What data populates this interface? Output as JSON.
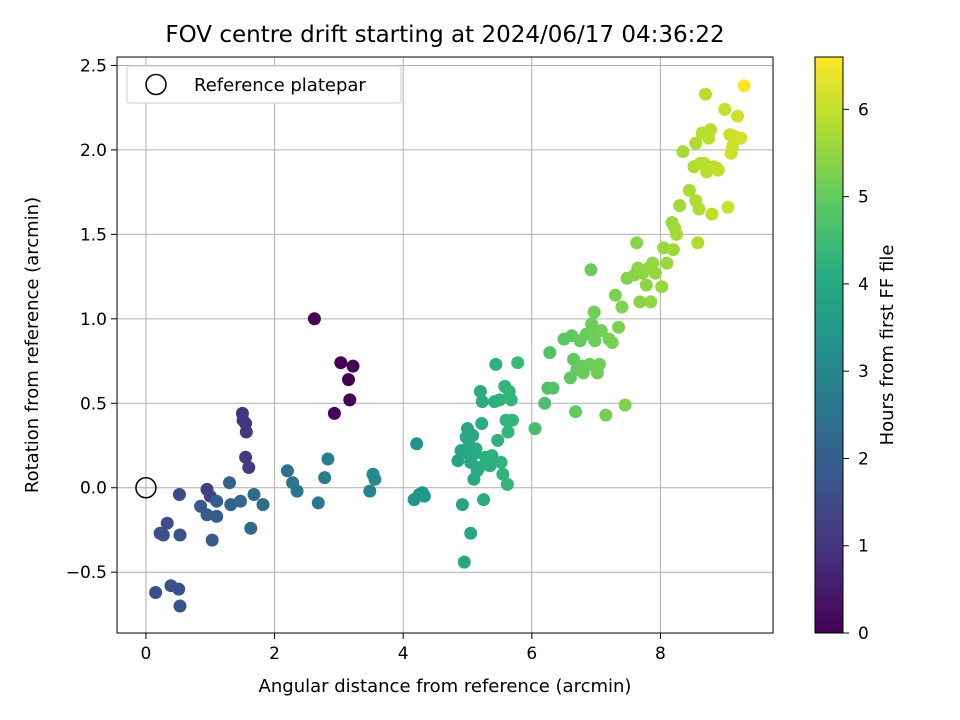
{
  "chart_data": {
    "type": "scatter",
    "title": "FOV centre drift starting at 2024/06/17 04:36:22",
    "xlabel": "Angular distance from reference (arcmin)",
    "ylabel": "Rotation from reference (arcmin)",
    "xlim": [
      -0.45,
      9.75
    ],
    "ylim": [
      -0.86,
      2.55
    ],
    "x_ticks": [
      0,
      2,
      4,
      6,
      8
    ],
    "y_ticks": [
      -0.5,
      0.0,
      0.5,
      1.0,
      1.5,
      2.0,
      2.5
    ],
    "grid": true,
    "legend": {
      "position": "top-left",
      "entries": [
        "Reference platepar"
      ]
    },
    "reference_point": {
      "x": 0,
      "y": 0
    },
    "colorbar": {
      "label": "Hours from first FF file",
      "colormap": "viridis",
      "range": [
        0,
        6.6
      ],
      "ticks": [
        0,
        1,
        2,
        3,
        4,
        5,
        6
      ]
    },
    "points": [
      [
        2.62,
        1.0,
        0.0
      ],
      [
        3.03,
        0.74,
        0.0
      ],
      [
        3.15,
        0.64,
        0.02
      ],
      [
        3.22,
        0.72,
        0.05
      ],
      [
        3.17,
        0.52,
        0.08
      ],
      [
        2.93,
        0.44,
        0.1
      ],
      [
        1.5,
        0.44,
        1.0
      ],
      [
        1.55,
        0.38,
        0.98
      ],
      [
        1.51,
        0.4,
        1.02
      ],
      [
        1.56,
        0.33,
        1.05
      ],
      [
        1.55,
        0.18,
        1.1
      ],
      [
        1.6,
        0.12,
        1.12
      ],
      [
        0.95,
        -0.01,
        1.25
      ],
      [
        1.0,
        -0.05,
        1.3
      ],
      [
        0.52,
        -0.04,
        1.45
      ],
      [
        0.33,
        -0.21,
        1.55
      ],
      [
        0.22,
        -0.27,
        1.6
      ],
      [
        0.27,
        -0.28,
        1.62
      ],
      [
        0.53,
        -0.28,
        1.65
      ],
      [
        0.15,
        -0.62,
        1.6
      ],
      [
        0.39,
        -0.58,
        1.65
      ],
      [
        0.51,
        -0.6,
        1.7
      ],
      [
        0.53,
        -0.7,
        1.72
      ],
      [
        0.85,
        -0.11,
        1.85
      ],
      [
        0.95,
        -0.16,
        1.9
      ],
      [
        1.03,
        -0.31,
        1.9
      ],
      [
        1.1,
        -0.08,
        1.95
      ],
      [
        1.1,
        -0.17,
        1.95
      ],
      [
        1.3,
        0.03,
        2.05
      ],
      [
        1.32,
        -0.1,
        2.05
      ],
      [
        1.47,
        -0.08,
        2.15
      ],
      [
        1.63,
        -0.24,
        2.2
      ],
      [
        1.68,
        -0.04,
        2.25
      ],
      [
        1.82,
        -0.1,
        2.3
      ],
      [
        2.2,
        0.1,
        2.45
      ],
      [
        2.28,
        0.03,
        2.5
      ],
      [
        2.35,
        -0.02,
        2.55
      ],
      [
        2.68,
        -0.09,
        2.7
      ],
      [
        2.78,
        0.06,
        2.75
      ],
      [
        2.83,
        0.17,
        2.8
      ],
      [
        3.48,
        -0.02,
        3.05
      ],
      [
        3.53,
        0.08,
        3.1
      ],
      [
        3.56,
        0.05,
        3.12
      ],
      [
        4.17,
        -0.07,
        3.4
      ],
      [
        4.21,
        0.26,
        3.42
      ],
      [
        4.25,
        -0.04,
        3.45
      ],
      [
        4.3,
        -0.03,
        3.47
      ],
      [
        4.33,
        -0.05,
        3.48
      ],
      [
        4.85,
        0.16,
        3.85
      ],
      [
        4.9,
        0.22,
        3.88
      ],
      [
        4.92,
        -0.1,
        3.9
      ],
      [
        4.95,
        -0.44,
        3.92
      ],
      [
        4.98,
        0.3,
        3.9
      ],
      [
        5.0,
        0.35,
        3.92
      ],
      [
        5.02,
        0.2,
        3.95
      ],
      [
        5.03,
        0.25,
        3.95
      ],
      [
        5.05,
        0.15,
        3.97
      ],
      [
        5.05,
        -0.27,
        3.98
      ],
      [
        5.08,
        0.31,
        4.0
      ],
      [
        5.1,
        0.05,
        4.02
      ],
      [
        5.1,
        0.2,
        4.0
      ],
      [
        5.13,
        0.23,
        4.03
      ],
      [
        5.15,
        0.1,
        4.05
      ],
      [
        5.18,
        0.12,
        4.05
      ],
      [
        5.2,
        0.57,
        4.08
      ],
      [
        5.22,
        0.38,
        4.1
      ],
      [
        5.23,
        0.51,
        4.1
      ],
      [
        5.25,
        -0.07,
        4.12
      ],
      [
        5.28,
        0.18,
        4.12
      ],
      [
        5.35,
        0.13,
        4.15
      ],
      [
        5.38,
        0.19,
        4.18
      ],
      [
        5.42,
        0.51,
        4.2
      ],
      [
        5.44,
        0.73,
        4.22
      ],
      [
        5.47,
        0.28,
        4.22
      ],
      [
        5.5,
        0.52,
        4.25
      ],
      [
        5.52,
        0.15,
        4.27
      ],
      [
        5.55,
        0.08,
        4.28
      ],
      [
        5.58,
        0.6,
        4.3
      ],
      [
        5.6,
        0.4,
        4.3
      ],
      [
        5.62,
        0.02,
        4.32
      ],
      [
        5.63,
        0.33,
        4.33
      ],
      [
        5.65,
        0.57,
        4.35
      ],
      [
        5.68,
        0.52,
        4.35
      ],
      [
        5.7,
        0.4,
        4.37
      ],
      [
        5.78,
        0.74,
        4.45
      ],
      [
        6.05,
        0.35,
        4.6
      ],
      [
        6.2,
        0.5,
        4.7
      ],
      [
        6.25,
        0.59,
        4.75
      ],
      [
        6.28,
        0.8,
        4.75
      ],
      [
        6.33,
        0.59,
        4.8
      ],
      [
        6.5,
        0.88,
        4.9
      ],
      [
        6.6,
        0.65,
        4.95
      ],
      [
        6.62,
        0.9,
        4.95
      ],
      [
        6.65,
        0.76,
        4.97
      ],
      [
        6.68,
        0.45,
        4.98
      ],
      [
        6.7,
        0.7,
        5.0
      ],
      [
        6.75,
        0.87,
        5.0
      ],
      [
        6.78,
        0.72,
        5.02
      ],
      [
        6.8,
        0.68,
        5.05
      ],
      [
        6.85,
        0.91,
        5.05
      ],
      [
        6.9,
        0.73,
        5.08
      ],
      [
        6.92,
        1.29,
        5.08
      ],
      [
        6.93,
        0.97,
        5.1
      ],
      [
        6.95,
        0.94,
        5.1
      ],
      [
        6.97,
        1.04,
        5.12
      ],
      [
        6.98,
        0.87,
        5.12
      ],
      [
        7.02,
        0.68,
        5.15
      ],
      [
        7.05,
        0.73,
        5.15
      ],
      [
        7.08,
        0.93,
        5.17
      ],
      [
        7.15,
        0.43,
        5.2
      ],
      [
        7.2,
        0.88,
        5.22
      ],
      [
        7.25,
        0.86,
        5.23
      ],
      [
        7.3,
        1.14,
        5.25
      ],
      [
        7.35,
        0.95,
        5.28
      ],
      [
        7.4,
        1.07,
        5.3
      ],
      [
        7.45,
        0.49,
        5.32
      ],
      [
        7.48,
        1.24,
        5.33
      ],
      [
        7.6,
        1.26,
        5.4
      ],
      [
        7.63,
        1.45,
        5.4
      ],
      [
        7.65,
        1.3,
        5.42
      ],
      [
        7.68,
        1.1,
        5.43
      ],
      [
        7.72,
        1.27,
        5.45
      ],
      [
        7.78,
        1.2,
        5.47
      ],
      [
        7.82,
        1.3,
        5.48
      ],
      [
        7.85,
        1.1,
        5.5
      ],
      [
        7.88,
        1.33,
        5.5
      ],
      [
        7.92,
        1.27,
        5.52
      ],
      [
        8.02,
        1.19,
        5.55
      ],
      [
        8.05,
        1.42,
        5.57
      ],
      [
        8.1,
        1.33,
        5.58
      ],
      [
        8.18,
        1.57,
        5.6
      ],
      [
        8.2,
        1.41,
        5.62
      ],
      [
        8.22,
        1.54,
        5.65
      ],
      [
        8.25,
        1.5,
        5.65
      ],
      [
        8.3,
        1.67,
        5.68
      ],
      [
        8.35,
        1.99,
        5.72
      ],
      [
        8.45,
        1.76,
        5.75
      ],
      [
        8.52,
        1.9,
        5.78
      ],
      [
        8.55,
        2.04,
        5.8
      ],
      [
        8.55,
        1.7,
        5.8
      ],
      [
        8.58,
        1.45,
        5.82
      ],
      [
        8.6,
        1.65,
        5.82
      ],
      [
        8.62,
        1.92,
        5.85
      ],
      [
        8.65,
        2.1,
        5.85
      ],
      [
        8.68,
        1.92,
        5.88
      ],
      [
        8.7,
        2.33,
        5.9
      ],
      [
        8.72,
        1.87,
        5.9
      ],
      [
        8.75,
        2.07,
        5.92
      ],
      [
        8.78,
        2.12,
        5.92
      ],
      [
        8.8,
        1.62,
        5.95
      ],
      [
        8.82,
        1.9,
        5.95
      ],
      [
        8.88,
        1.89,
        5.97
      ],
      [
        8.9,
        1.88,
        6.0
      ],
      [
        9.0,
        2.24,
        6.02
      ],
      [
        9.05,
        1.66,
        6.05
      ],
      [
        9.08,
        2.09,
        6.05
      ],
      [
        9.1,
        1.98,
        6.08
      ],
      [
        9.12,
        2.02,
        6.1
      ],
      [
        9.15,
        2.08,
        6.12
      ],
      [
        9.2,
        2.2,
        6.15
      ],
      [
        9.25,
        2.07,
        6.18
      ],
      [
        9.3,
        2.38,
        6.55
      ]
    ]
  }
}
